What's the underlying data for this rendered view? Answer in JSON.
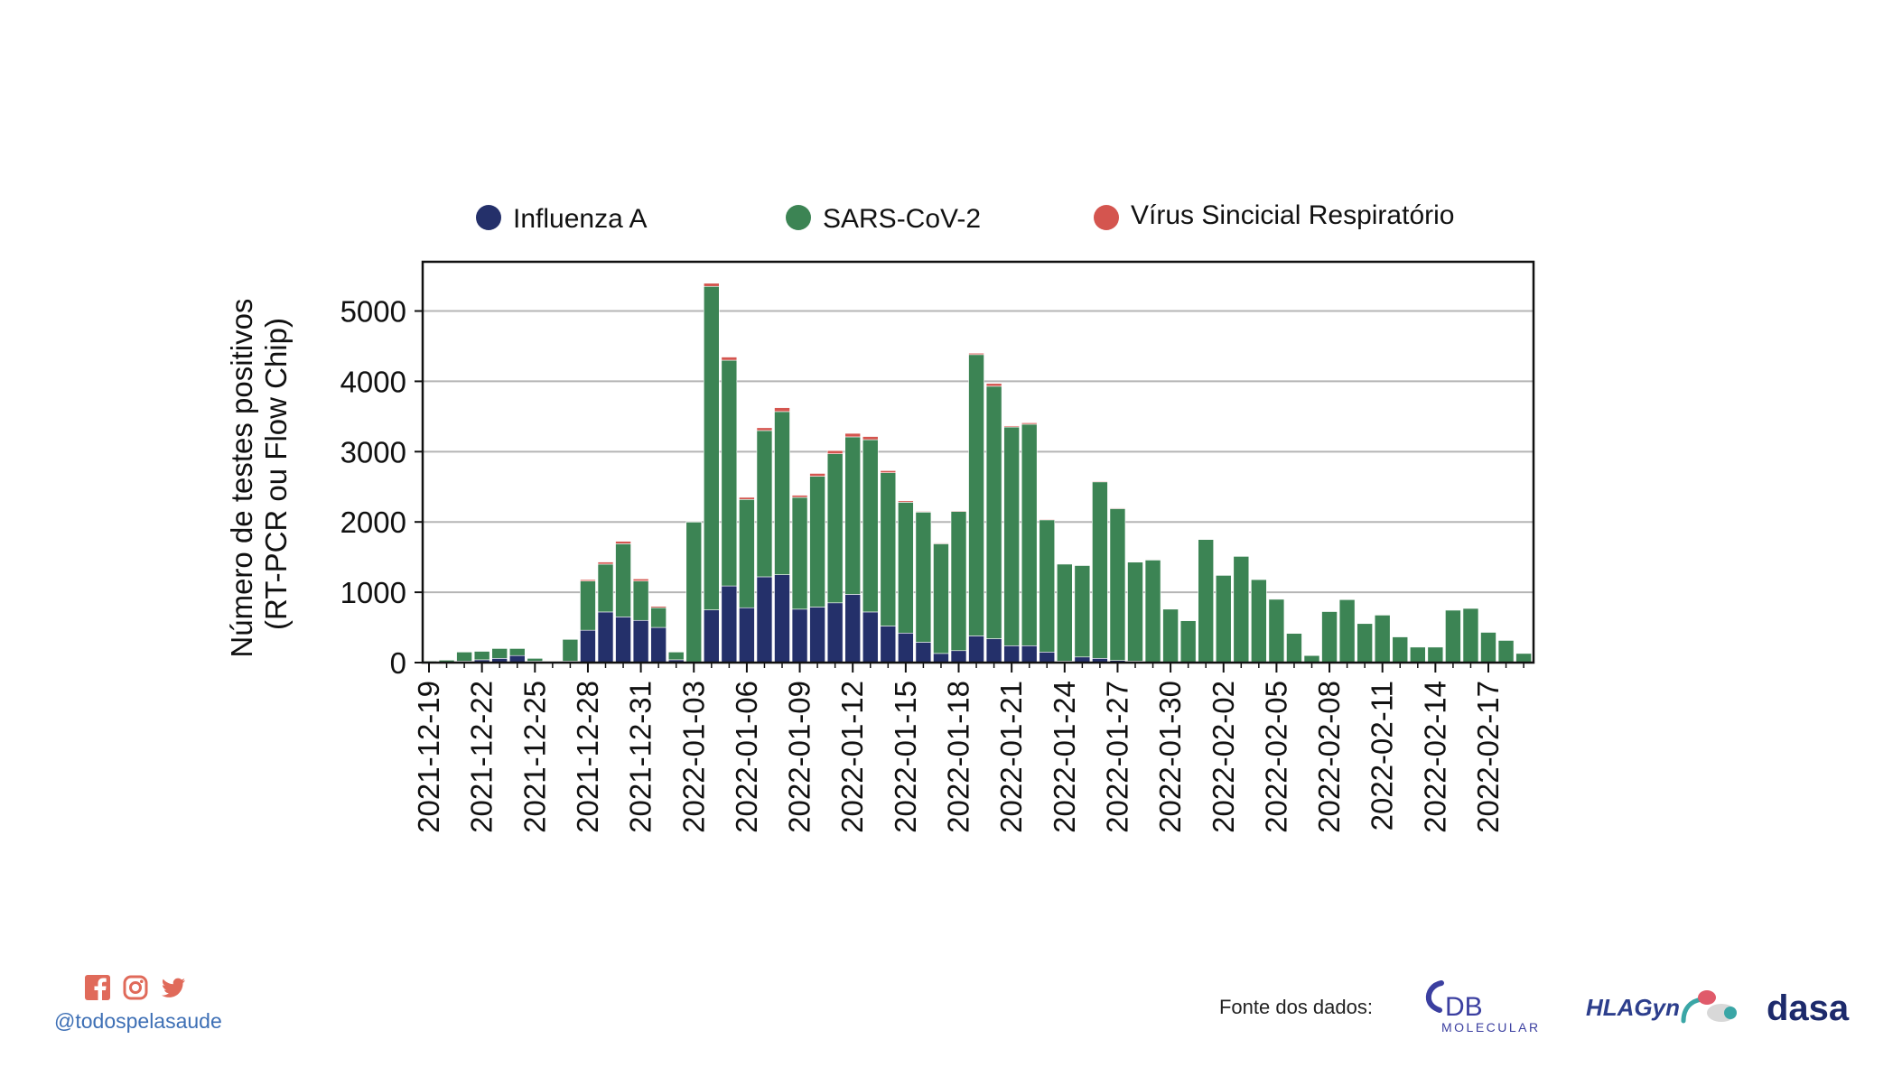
{
  "colors": {
    "influenza": "#24306a",
    "sars": "#3c8454",
    "vsr": "#d4554f",
    "grid": "#b5b5b5",
    "social": "#e06a5a",
    "handle": "#3d6fb5"
  },
  "footer": {
    "social_icons": [
      "facebook-icon",
      "instagram-icon",
      "twitter-icon"
    ],
    "handle": "@todospelasaude",
    "source_label": "Fonte dos dados:",
    "logos": {
      "db": "DB",
      "db_sub": "MOLECULAR",
      "hlagyn": "HLAGyn",
      "dasa": "dasa"
    }
  },
  "chart_data": {
    "type": "bar",
    "stacked": true,
    "title": "",
    "xlabel": "",
    "ylabel": "Número de testes positivos (RT-PCR ou Flow Chip)",
    "ylim": [
      0,
      5700
    ],
    "yticks": [
      0,
      1000,
      2000,
      3000,
      4000,
      5000
    ],
    "grid": true,
    "legend_position": "top",
    "x_start": "2021-12-19",
    "x_end": "2022-02-19",
    "xtick_labels": [
      "2021-12-19",
      "2021-12-22",
      "2021-12-25",
      "2021-12-28",
      "2021-12-31",
      "2022-01-03",
      "2022-01-06",
      "2022-01-09",
      "2022-01-12",
      "2022-01-15",
      "2022-01-18",
      "2022-01-21",
      "2022-01-24",
      "2022-01-27",
      "2022-01-30",
      "2022-02-02",
      "2022-02-05",
      "2022-02-08",
      "2022-02-11",
      "2022-02-14",
      "2022-02-17"
    ],
    "categories": [
      "2021-12-19",
      "2021-12-20",
      "2021-12-21",
      "2021-12-22",
      "2021-12-23",
      "2021-12-24",
      "2021-12-25",
      "2021-12-26",
      "2021-12-27",
      "2021-12-28",
      "2021-12-29",
      "2021-12-30",
      "2021-12-31",
      "2022-01-01",
      "2022-01-02",
      "2022-01-03",
      "2022-01-04",
      "2022-01-05",
      "2022-01-06",
      "2022-01-07",
      "2022-01-08",
      "2022-01-09",
      "2022-01-10",
      "2022-01-11",
      "2022-01-12",
      "2022-01-13",
      "2022-01-14",
      "2022-01-15",
      "2022-01-16",
      "2022-01-17",
      "2022-01-18",
      "2022-01-19",
      "2022-01-20",
      "2022-01-21",
      "2022-01-22",
      "2022-01-23",
      "2022-01-24",
      "2022-01-25",
      "2022-01-26",
      "2022-01-27",
      "2022-01-28",
      "2022-01-29",
      "2022-01-30",
      "2022-01-31",
      "2022-02-01",
      "2022-02-02",
      "2022-02-03",
      "2022-02-04",
      "2022-02-05",
      "2022-02-06",
      "2022-02-07",
      "2022-02-08",
      "2022-02-09",
      "2022-02-10",
      "2022-02-11",
      "2022-02-12",
      "2022-02-13",
      "2022-02-14",
      "2022-02-15",
      "2022-02-16",
      "2022-02-17",
      "2022-02-18",
      "2022-02-19"
    ],
    "series": [
      {
        "name": "Influenza A",
        "color": "#24306a",
        "values": [
          0,
          5,
          20,
          40,
          60,
          100,
          20,
          0,
          20,
          460,
          720,
          650,
          600,
          500,
          40,
          10,
          750,
          1090,
          780,
          1220,
          1250,
          760,
          790,
          850,
          970,
          720,
          520,
          420,
          290,
          130,
          170,
          380,
          340,
          240,
          240,
          150,
          20,
          80,
          60,
          30,
          20,
          10,
          10,
          5,
          10,
          10,
          10,
          10,
          10,
          5,
          5,
          5,
          5,
          5,
          5,
          5,
          5,
          5,
          5,
          5,
          5,
          5,
          5
        ]
      },
      {
        "name": "SARS-CoV-2",
        "color": "#3c8454",
        "values": [
          20,
          30,
          130,
          120,
          140,
          100,
          40,
          10,
          310,
          700,
          680,
          1040,
          560,
          280,
          110,
          1990,
          4600,
          3210,
          1540,
          2080,
          2320,
          1590,
          1860,
          2120,
          2240,
          2450,
          2180,
          1860,
          1850,
          1560,
          1980,
          4000,
          3590,
          3110,
          3150,
          1880,
          1380,
          1300,
          2510,
          2160,
          1410,
          1450,
          750,
          590,
          1740,
          1230,
          1500,
          1170,
          890,
          410,
          95,
          720,
          890,
          550,
          670,
          360,
          215,
          215,
          740,
          765,
          425,
          310,
          125
        ]
      },
      {
        "name": "Vírus Sincicial Respiratório",
        "color": "#d4554f",
        "values": [
          0,
          0,
          0,
          0,
          0,
          0,
          0,
          0,
          0,
          20,
          30,
          35,
          30,
          20,
          0,
          5,
          45,
          45,
          30,
          40,
          55,
          30,
          40,
          45,
          50,
          45,
          30,
          20,
          10,
          10,
          10,
          20,
          40,
          15,
          20,
          10,
          0,
          0,
          10,
          10,
          5,
          5,
          0,
          0,
          0,
          0,
          0,
          0,
          0,
          0,
          0,
          0,
          0,
          0,
          0,
          0,
          0,
          0,
          0,
          0,
          0,
          0,
          0
        ]
      }
    ]
  }
}
